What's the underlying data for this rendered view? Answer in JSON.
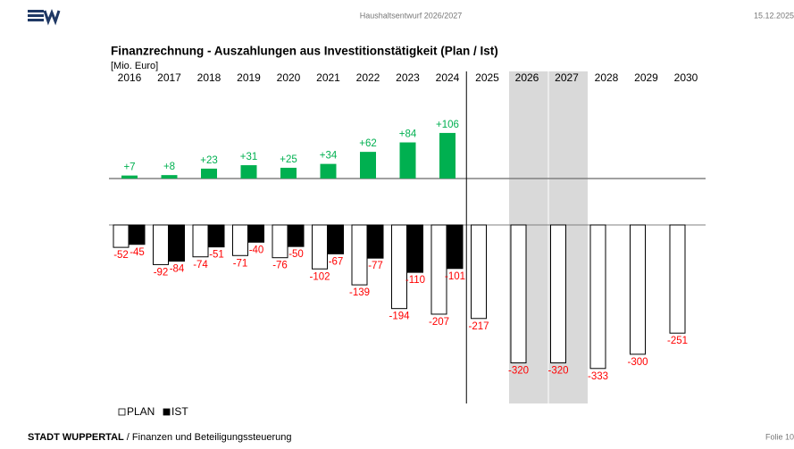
{
  "header": {
    "subtitle": "Haushaltsentwurf 2026/2027",
    "date": "15.12.2025"
  },
  "footer": {
    "org": "STADT WUPPERTAL",
    "dept": " / Finanzen und Beteiligungssteuerung",
    "slide": "Folie 10"
  },
  "chart_data": {
    "type": "bar",
    "title": "Finanzrechnung - Auszahlungen aus Investitionstätigkeit (Plan / Ist)",
    "unit_label": "[Mio. Euro]",
    "categories": [
      "2016",
      "2017",
      "2018",
      "2019",
      "2020",
      "2021",
      "2022",
      "2023",
      "2024",
      "2025",
      "2026",
      "2027",
      "2028",
      "2029",
      "2030"
    ],
    "series": [
      {
        "name": "PLAN",
        "color": "#ffffff",
        "values": [
          -52,
          -92,
          -74,
          -71,
          -76,
          -102,
          -139,
          -194,
          -207,
          -217,
          -320,
          -320,
          -333,
          -300,
          -251
        ]
      },
      {
        "name": "IST",
        "color": "#000000",
        "values": [
          -45,
          -84,
          -51,
          -40,
          -50,
          -67,
          -77,
          -110,
          -101,
          null,
          null,
          null,
          null,
          null,
          null
        ]
      }
    ],
    "difference": {
      "color": "#00b050",
      "values": [
        7,
        8,
        23,
        31,
        25,
        34,
        62,
        84,
        106
      ],
      "value_labels": [
        "+7",
        "+8",
        "+23",
        "+31",
        "+25",
        "+34",
        "+62",
        "+84",
        "+106"
      ]
    },
    "ylim": [
      -350,
      0
    ],
    "diff_ylim": [
      0,
      110
    ],
    "shaded_indices": [
      10,
      11
    ],
    "shade_color": "#d9d9d9"
  }
}
